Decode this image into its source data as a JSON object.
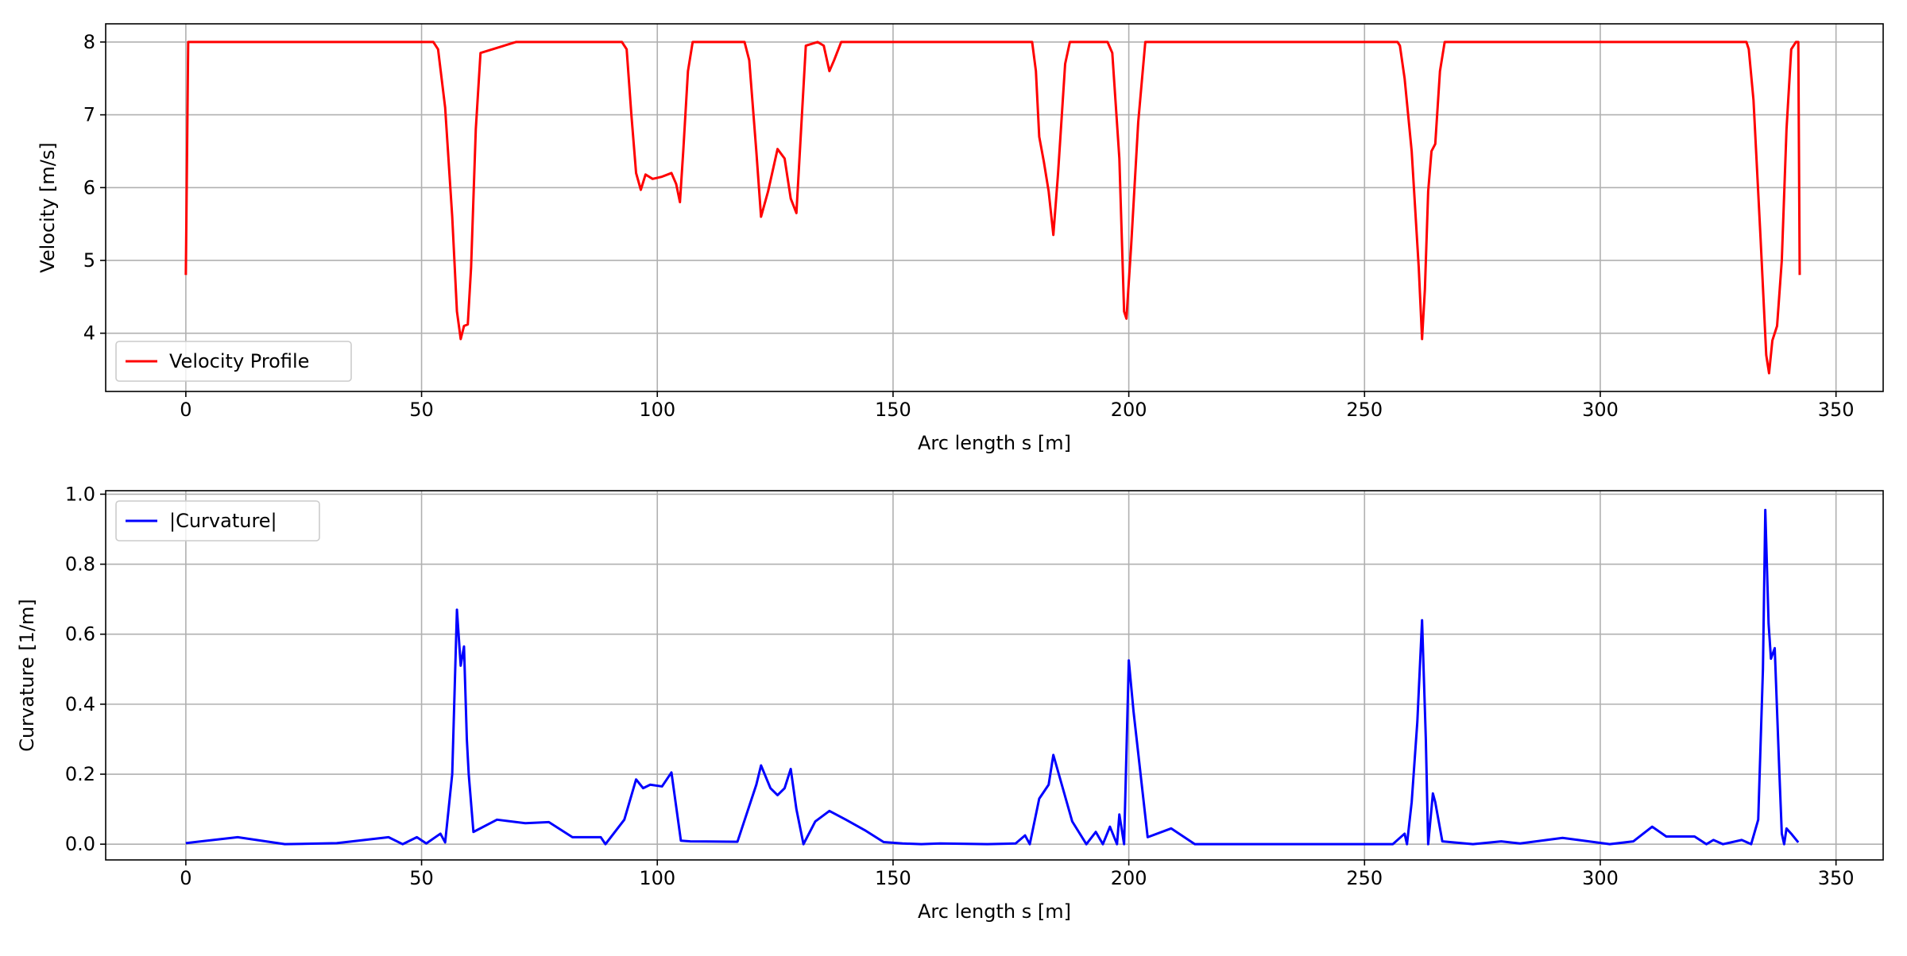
{
  "chart_data": [
    {
      "type": "line",
      "xlabel": "Arc length s [m]",
      "ylabel": "Velocity [m/s]",
      "xlim": [
        -17,
        360
      ],
      "ylim": [
        3.2,
        8.25
      ],
      "xticks": [
        0,
        50,
        100,
        150,
        200,
        250,
        300,
        350
      ],
      "yticks": [
        4,
        5,
        6,
        7,
        8
      ],
      "grid": true,
      "legend_position": "lower left",
      "series": [
        {
          "name": "Velocity Profile",
          "color": "#ff0000",
          "x": [
            0,
            0.5,
            1,
            20,
            40,
            52.5,
            53.5,
            55,
            56.5,
            57.5,
            58.3,
            59,
            59.8,
            60.5,
            61.5,
            62.5,
            70,
            80,
            92.5,
            93.5,
            94.5,
            95.5,
            96.5,
            97.5,
            99,
            101,
            103,
            104,
            104.8,
            105.5,
            106.5,
            107.5,
            110,
            118.5,
            119.5,
            121,
            122,
            123.5,
            125.5,
            127,
            128.3,
            129.5,
            130.5,
            131.5,
            134,
            135.3,
            136.5,
            137.5,
            139,
            150,
            170,
            179.5,
            180.3,
            181,
            182,
            183,
            184,
            185,
            186.5,
            187.5,
            190,
            195.5,
            196.5,
            198,
            199,
            199.5,
            200.5,
            202,
            203.5,
            210,
            230,
            257,
            257.5,
            258.5,
            260,
            261.5,
            262.2,
            262.8,
            263.5,
            264.2,
            265,
            266,
            267,
            280,
            300,
            331,
            331.5,
            332.5,
            334,
            335.2,
            335.8,
            336.5,
            337.5,
            338.5,
            339.5,
            340.5,
            341.5,
            342,
            342.3
          ],
          "y": [
            4.8,
            8.0,
            8.0,
            8.0,
            8.0,
            8.0,
            7.9,
            7.1,
            5.6,
            4.3,
            3.92,
            4.1,
            4.12,
            4.9,
            6.8,
            7.85,
            8.0,
            8.0,
            8.0,
            7.9,
            7.0,
            6.2,
            5.97,
            6.18,
            6.12,
            6.15,
            6.2,
            6.05,
            5.8,
            6.5,
            7.6,
            8.0,
            8.0,
            8.0,
            7.75,
            6.5,
            5.6,
            5.95,
            6.53,
            6.4,
            5.85,
            5.65,
            6.8,
            7.95,
            8.0,
            7.95,
            7.6,
            7.75,
            8.0,
            8.0,
            8.0,
            8.0,
            7.6,
            6.7,
            6.35,
            5.95,
            5.35,
            6.2,
            7.7,
            8.0,
            8.0,
            8.0,
            7.85,
            6.4,
            4.3,
            4.2,
            5.2,
            6.9,
            8.0,
            8.0,
            8.0,
            8.0,
            7.95,
            7.5,
            6.5,
            4.9,
            3.92,
            4.6,
            5.95,
            6.5,
            6.6,
            7.6,
            8.0,
            8.0,
            8.0,
            8.0,
            7.9,
            7.2,
            5.3,
            3.7,
            3.45,
            3.9,
            4.1,
            5.0,
            6.8,
            7.9,
            8.0,
            8.0,
            4.8
          ]
        }
      ]
    },
    {
      "type": "line",
      "xlabel": "Arc length s [m]",
      "ylabel": "Curvature [1/m]",
      "xlim": [
        -17,
        360
      ],
      "ylim": [
        -0.045,
        1.01
      ],
      "xticks": [
        0,
        50,
        100,
        150,
        200,
        250,
        300,
        350
      ],
      "yticks": [
        0.0,
        0.2,
        0.4,
        0.6,
        0.8,
        1.0
      ],
      "grid": true,
      "legend_position": "upper left",
      "series": [
        {
          "name": "|Curvature|",
          "color": "#0000ff",
          "x": [
            0,
            11,
            21,
            32,
            43,
            46,
            49,
            51,
            54,
            55,
            56.5,
            57.5,
            58.3,
            59,
            59.6,
            60,
            61,
            66,
            72,
            77,
            82,
            88,
            89,
            93,
            95.5,
            97,
            98.5,
            101,
            103,
            105,
            107,
            117,
            121,
            122,
            124,
            125.5,
            127,
            128.3,
            129.5,
            131,
            133.5,
            135,
            136.5,
            140,
            144,
            148,
            152,
            156,
            160,
            170,
            176,
            178,
            179,
            181,
            183,
            184,
            186,
            188,
            191,
            193,
            194.5,
            196,
            197.5,
            198,
            199,
            200,
            201,
            204,
            209,
            214,
            230,
            256,
            258.5,
            259,
            260,
            261.2,
            262.2,
            263,
            263.5,
            264.5,
            265,
            266.5,
            273,
            279,
            283,
            292,
            302,
            307,
            311,
            314,
            320,
            322.5,
            324,
            326,
            330,
            332,
            333.5,
            334.5,
            335,
            335.7,
            336.2,
            337,
            338,
            338.5,
            339,
            339.5,
            340.5,
            342
          ],
          "y": [
            0.003,
            0.02,
            0.0,
            0.003,
            0.02,
            0.0,
            0.02,
            0.002,
            0.03,
            0.005,
            0.2,
            0.67,
            0.51,
            0.565,
            0.3,
            0.2,
            0.035,
            0.07,
            0.06,
            0.063,
            0.02,
            0.02,
            0.0,
            0.07,
            0.185,
            0.16,
            0.17,
            0.165,
            0.205,
            0.01,
            0.008,
            0.007,
            0.17,
            0.225,
            0.16,
            0.14,
            0.16,
            0.215,
            0.1,
            0.0,
            0.065,
            0.08,
            0.095,
            0.07,
            0.04,
            0.006,
            0.002,
            0.0,
            0.002,
            0.0,
            0.002,
            0.025,
            0.0,
            0.13,
            0.17,
            0.255,
            0.16,
            0.065,
            0.0,
            0.035,
            0.0,
            0.05,
            0.0,
            0.085,
            0.0,
            0.525,
            0.38,
            0.02,
            0.045,
            0.0,
            0.0,
            0.0,
            0.03,
            0.0,
            0.12,
            0.35,
            0.64,
            0.3,
            0.0,
            0.145,
            0.12,
            0.008,
            0.0,
            0.008,
            0.002,
            0.018,
            0.0,
            0.008,
            0.05,
            0.022,
            0.022,
            0.0,
            0.012,
            0.0,
            0.012,
            0.0,
            0.07,
            0.5,
            0.955,
            0.63,
            0.53,
            0.56,
            0.2,
            0.03,
            0.0,
            0.045,
            0.03,
            0.005
          ]
        }
      ]
    }
  ]
}
